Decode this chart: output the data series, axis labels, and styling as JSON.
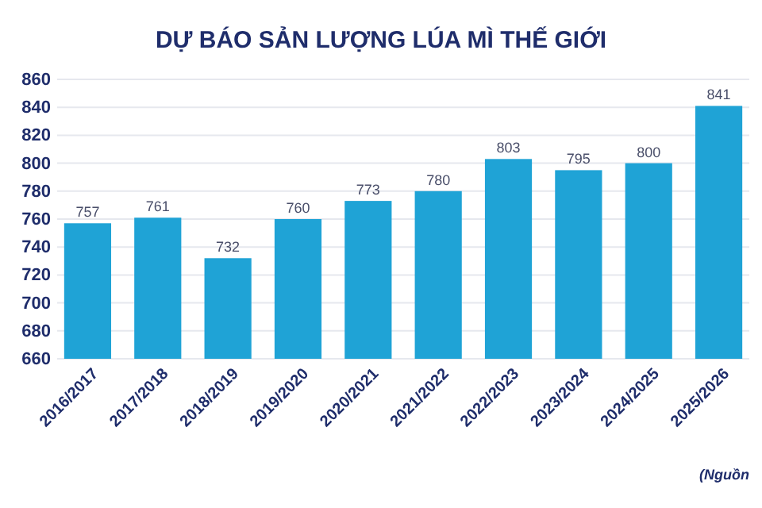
{
  "chart_data": {
    "type": "bar",
    "title": "DỰ BÁO SẢN LƯỢNG LÚA MÌ THẾ GIỚI",
    "categories": [
      "2016/2017",
      "2017/2018",
      "2018/2019",
      "2019/2020",
      "2020/2021",
      "2021/2022",
      "2022/2023",
      "2023/2024",
      "2024/2025",
      "2025/2026"
    ],
    "values": [
      757,
      761,
      732,
      760,
      773,
      780,
      803,
      795,
      800,
      841
    ],
    "color": "#1fa3d6",
    "ylim": [
      660,
      860
    ],
    "yticks": [
      660,
      680,
      700,
      720,
      740,
      760,
      780,
      800,
      820,
      840,
      860
    ],
    "grid": "y",
    "data_labels": true,
    "annotations": [
      "(Nguồn"
    ]
  }
}
